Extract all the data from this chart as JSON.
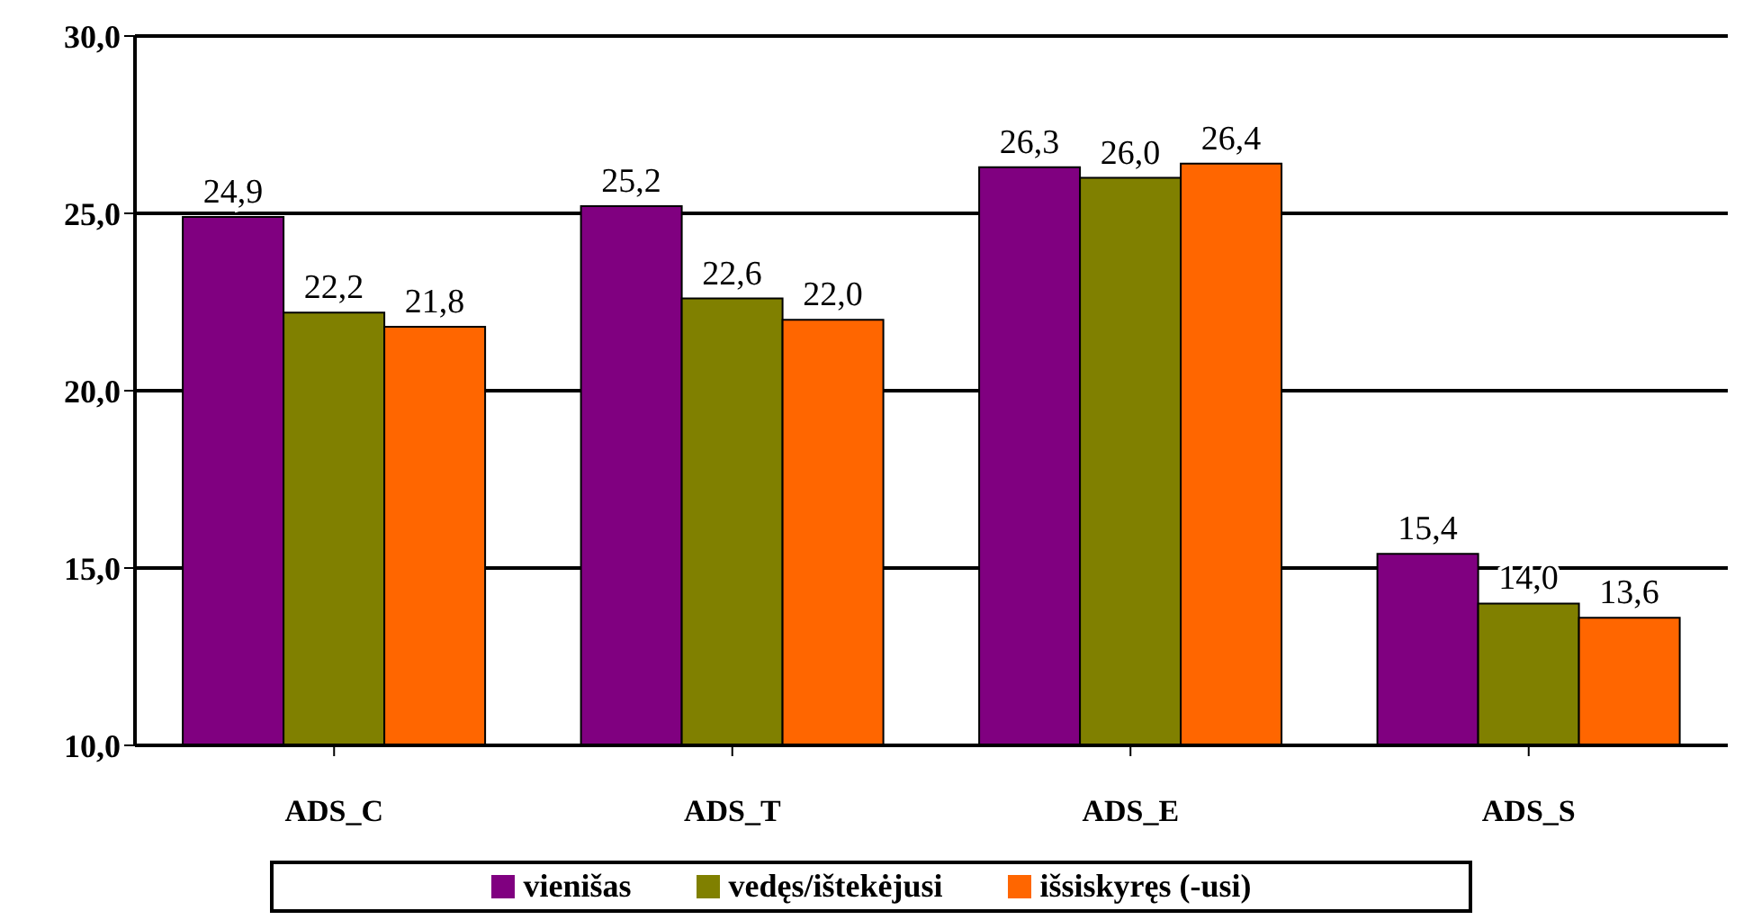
{
  "chart_data": {
    "type": "bar",
    "categories": [
      "ADS_C",
      "ADS_T",
      "ADS_E",
      "ADS_S"
    ],
    "series": [
      {
        "name": "vienišas",
        "color": "#800080",
        "values": [
          24.9,
          25.2,
          26.3,
          15.4
        ],
        "value_labels": [
          "24,9",
          "25,2",
          "26,3",
          "15,4"
        ]
      },
      {
        "name": "vedęs/ištekėjusi",
        "color": "#808000",
        "values": [
          22.2,
          22.6,
          26.0,
          14.0
        ],
        "value_labels": [
          "22,2",
          "22,6",
          "26,0",
          "14,0"
        ]
      },
      {
        "name": "išsiskyręs (-usi)",
        "color": "#ff6600",
        "values": [
          21.8,
          22.0,
          26.4,
          13.6
        ],
        "value_labels": [
          "21,8",
          "22,0",
          "26,4",
          "13,6"
        ]
      }
    ],
    "ylim": [
      10,
      30
    ],
    "yticks": [
      {
        "value": 10,
        "label": "10,0"
      },
      {
        "value": 15,
        "label": "15,0"
      },
      {
        "value": 20,
        "label": "20,0"
      },
      {
        "value": 25,
        "label": "25,0"
      },
      {
        "value": 30,
        "label": "30,0"
      }
    ],
    "grid": "y",
    "legend": "bottom"
  }
}
